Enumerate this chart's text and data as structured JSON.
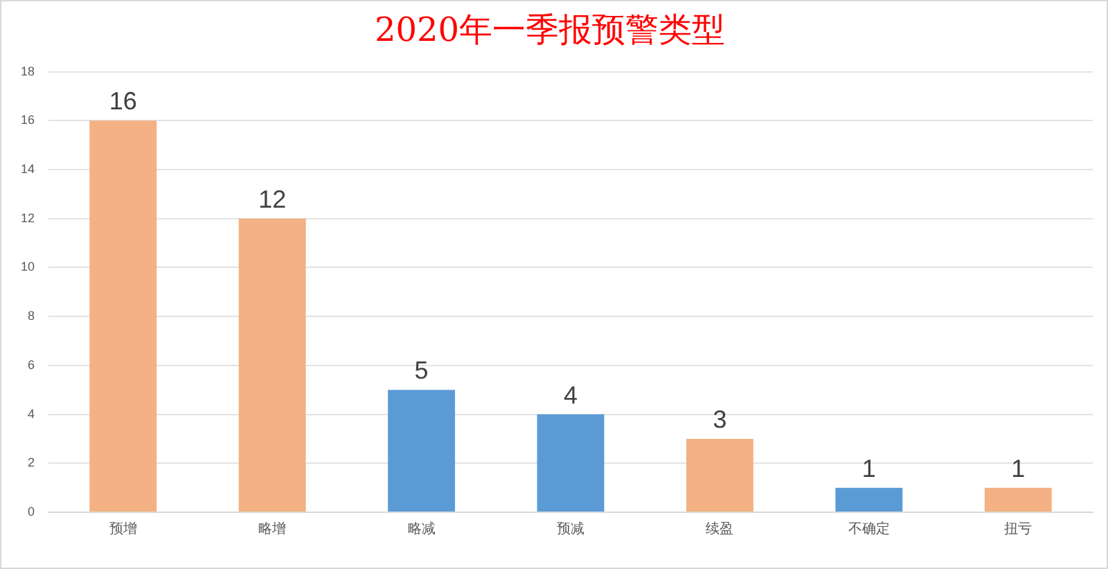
{
  "chart_data": {
    "type": "bar",
    "title": "2020年一季报预警类型",
    "categories": [
      "预增",
      "略增",
      "略减",
      "预减",
      "续盈",
      "不确定",
      "扭亏"
    ],
    "values": [
      16,
      12,
      5,
      4,
      3,
      1,
      1
    ],
    "colors": [
      "#f4b183",
      "#f4b183",
      "#5b9bd5",
      "#5b9bd5",
      "#f4b183",
      "#5b9bd5",
      "#f4b183"
    ],
    "ylim": [
      0,
      18
    ],
    "yticks": [
      0,
      2,
      4,
      6,
      8,
      10,
      12,
      14,
      16,
      18
    ],
    "grid": "y",
    "data_labels": true
  }
}
